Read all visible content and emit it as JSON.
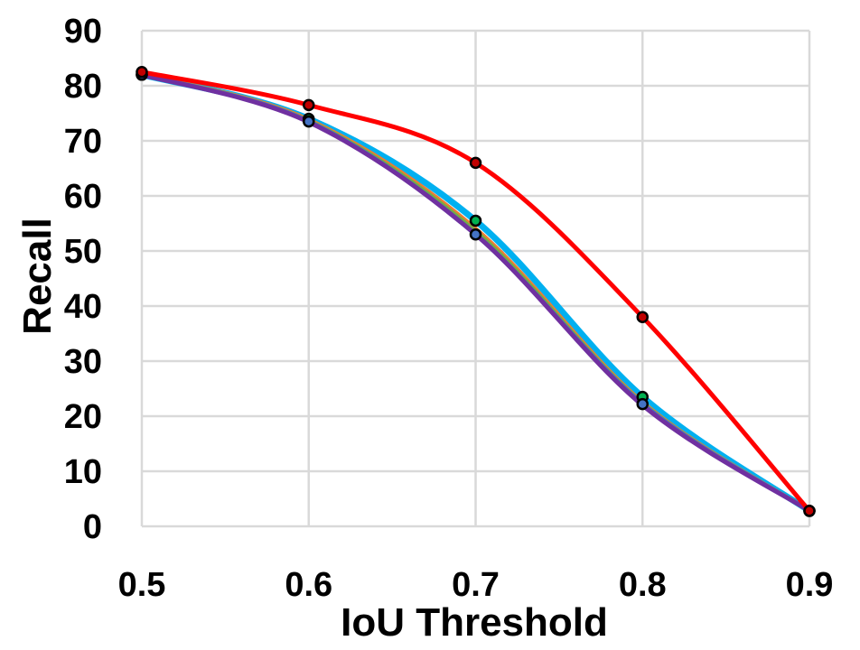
{
  "chart_data": {
    "type": "line",
    "title": "",
    "xlabel": "IoU Threshold",
    "ylabel": "Recall",
    "x": [
      0.5,
      0.6,
      0.7,
      0.8,
      0.9
    ],
    "x_tick_labels": [
      "0.5",
      "0.6",
      "0.7",
      "0.8",
      "0.9"
    ],
    "y_ticks": [
      0,
      10,
      20,
      30,
      40,
      50,
      60,
      70,
      80,
      90
    ],
    "xlim": [
      0.5,
      0.9
    ],
    "ylim": [
      0,
      90
    ],
    "grid": true,
    "smooth": true,
    "series": [
      {
        "color": "#00b0f0",
        "values": [
          82.0,
          74.0,
          55.5,
          23.5,
          2.8
        ]
      },
      {
        "color": "#ed7d31",
        "values": [
          82.0,
          73.8,
          54.0,
          22.5,
          2.8
        ]
      },
      {
        "color": "#70ad47",
        "values": [
          82.0,
          73.6,
          53.5,
          22.3,
          2.8
        ]
      },
      {
        "color": "#4472c4",
        "values": [
          82.0,
          73.5,
          53.0,
          22.2,
          2.8
        ]
      },
      {
        "color": "#7030a0",
        "values": [
          82.0,
          73.4,
          53.0,
          22.0,
          2.8
        ]
      },
      {
        "color": "#ff0000",
        "values": [
          82.5,
          76.5,
          66.0,
          38.0,
          2.8
        ]
      }
    ],
    "markers": [
      {
        "series_index": 0,
        "color": "#00b050"
      },
      {
        "series_index": 3,
        "color": "#4472c4"
      },
      {
        "series_index": 5,
        "color": "#c00000"
      }
    ]
  }
}
